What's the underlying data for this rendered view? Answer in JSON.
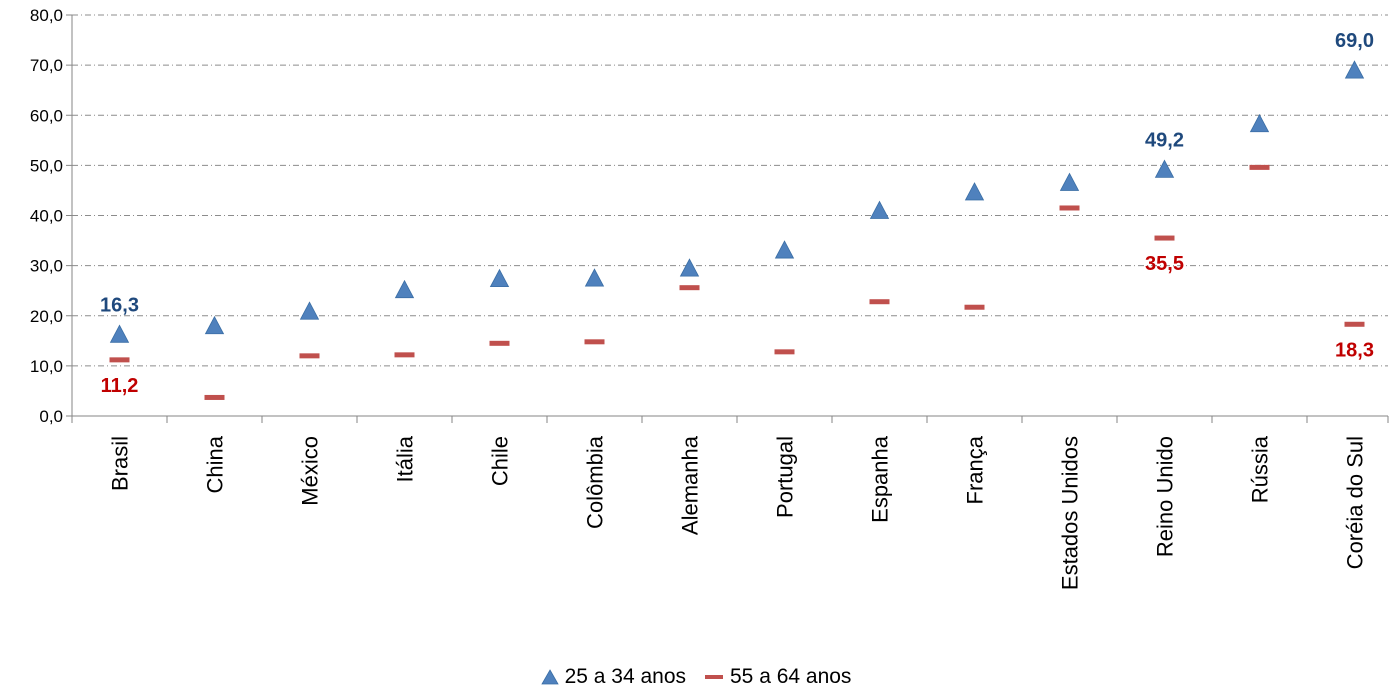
{
  "chart_data": {
    "type": "scatter",
    "categories": [
      "Brasil",
      "China",
      "México",
      "Itália",
      "Chile",
      "Colômbia",
      "Alemanha",
      "Portugal",
      "Espanha",
      "França",
      "Estados Unidos",
      "Reino Unido",
      "Rússia",
      "Coréia do Sul"
    ],
    "series": [
      {
        "name": "25 a 34 anos",
        "marker": "triangle",
        "color": "#4F81BD",
        "values": [
          16.3,
          18.0,
          20.9,
          25.2,
          27.4,
          27.5,
          29.5,
          33.1,
          41.0,
          44.7,
          46.6,
          49.2,
          58.3,
          69.0
        ]
      },
      {
        "name": "55 a 64 anos",
        "marker": "dash",
        "color": "#C0504D",
        "values": [
          11.2,
          3.7,
          12.0,
          12.2,
          14.5,
          14.8,
          25.6,
          12.8,
          22.8,
          21.7,
          41.5,
          35.5,
          49.6,
          18.3
        ]
      }
    ],
    "data_labels": [
      {
        "series": 0,
        "index": 0,
        "text": "16,3",
        "color": "#1F497D"
      },
      {
        "series": 0,
        "index": 11,
        "text": "49,2",
        "color": "#1F497D"
      },
      {
        "series": 0,
        "index": 13,
        "text": "69,0",
        "color": "#1F497D"
      },
      {
        "series": 1,
        "index": 0,
        "text": "11,2",
        "color": "#C00000"
      },
      {
        "series": 1,
        "index": 11,
        "text": "35,5",
        "color": "#C00000"
      },
      {
        "series": 1,
        "index": 13,
        "text": "18,3",
        "color": "#C00000"
      }
    ],
    "ylim": [
      0,
      80
    ],
    "yticks": [
      "0,0",
      "10,0",
      "20,0",
      "30,0",
      "40,0",
      "50,0",
      "60,0",
      "70,0",
      "80,0"
    ],
    "grid": true,
    "legend_position": "bottom",
    "title": "",
    "xlabel": "",
    "ylabel": ""
  },
  "legend": {
    "items": [
      "25 a 34 anos",
      "55 a 64 anos"
    ]
  }
}
